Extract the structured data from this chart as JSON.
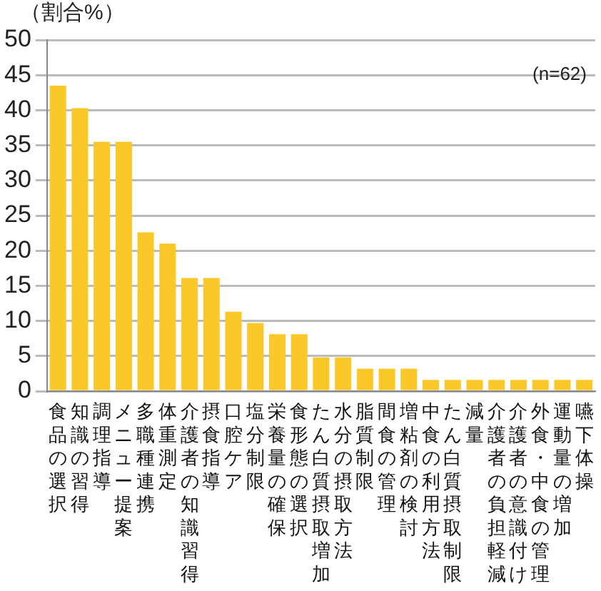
{
  "chart_data": {
    "type": "bar",
    "ylabel": "（割合%）",
    "annotations": [
      "(n=62)"
    ],
    "categories": [
      "食品の選択",
      "知識の習得",
      "調理指導",
      "メニュー提案",
      "多職種連携",
      "体重測定",
      "介護者の知識習得",
      "摂食指導",
      "口腔ケア",
      "塩分制限",
      "栄養量の確保",
      "食形態の選択",
      "たん白質摂取増加",
      "水分の摂取方法",
      "脂質制限",
      "間食の管理",
      "増粘剤の検討",
      "中食の利用方法",
      "たん白質摂取制限",
      "減量",
      "介護者の負担軽減",
      "介護者の意識付け",
      "外食・中食の管理",
      "運動量の増加",
      "嚥下体操"
    ],
    "values": [
      43.5,
      40.3,
      35.5,
      35.5,
      22.6,
      21.0,
      16.1,
      16.1,
      11.3,
      9.7,
      8.1,
      8.1,
      4.8,
      4.8,
      3.2,
      3.2,
      3.2,
      1.6,
      1.6,
      1.6,
      1.6,
      1.6,
      1.6,
      1.6,
      1.6
    ],
    "color": "#fbc82a",
    "ylim": [
      0,
      50
    ],
    "yticks": [
      0,
      5,
      10,
      15,
      20,
      25,
      30,
      35,
      40,
      45,
      50
    ],
    "grid": "y",
    "legend": false
  }
}
